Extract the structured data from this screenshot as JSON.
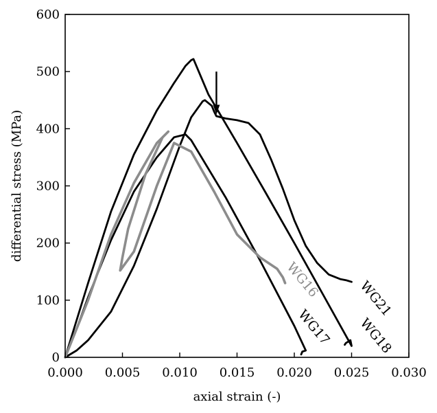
{
  "chart_data": {
    "type": "line",
    "xlabel": "axial strain (-)",
    "ylabel": "differential stress (MPa)",
    "xlim": [
      0.0,
      0.03
    ],
    "ylim": [
      0,
      600
    ],
    "xticks": [
      0.0,
      0.005,
      0.01,
      0.015,
      0.02,
      0.025,
      0.03
    ],
    "xtick_labels": [
      "0.000",
      "0.005",
      "0.010",
      "0.015",
      "0.020",
      "0.025",
      "0.030"
    ],
    "yticks": [
      0,
      100,
      200,
      300,
      400,
      500,
      600
    ],
    "ytick_labels": [
      "0",
      "100",
      "200",
      "300",
      "400",
      "500",
      "600"
    ],
    "grid": false,
    "series": [
      {
        "name": "WG21",
        "color": "#000000",
        "x": [
          0.0,
          0.002,
          0.004,
          0.006,
          0.008,
          0.0095,
          0.0105,
          0.011,
          0.0112,
          0.0125,
          0.015,
          0.0175,
          0.02,
          0.0225,
          0.025,
          0.0249,
          0.0245,
          0.0244
        ],
        "y": [
          0,
          130,
          255,
          355,
          432,
          480,
          510,
          520,
          522,
          460,
          375,
          288,
          200,
          110,
          20,
          30,
          25,
          22
        ]
      },
      {
        "name": "WG18",
        "color": "#000000",
        "x": [
          0.0,
          0.001,
          0.002,
          0.004,
          0.006,
          0.008,
          0.01,
          0.011,
          0.012,
          0.0122,
          0.0128,
          0.013,
          0.0132,
          0.014,
          0.015,
          0.016,
          0.017,
          0.018,
          0.019,
          0.02,
          0.021,
          0.022,
          0.023,
          0.024,
          0.0245,
          0.025
        ],
        "y": [
          0,
          12,
          30,
          80,
          160,
          260,
          370,
          420,
          448,
          450,
          440,
          430,
          422,
          418,
          415,
          410,
          390,
          345,
          295,
          240,
          195,
          165,
          145,
          137,
          135,
          132
        ]
      },
      {
        "name": "WG17",
        "color": "#000000",
        "x": [
          0.0,
          0.001,
          0.002,
          0.004,
          0.006,
          0.008,
          0.0095,
          0.0105,
          0.011,
          0.014,
          0.017,
          0.02,
          0.021,
          0.0207,
          0.0206
        ],
        "y": [
          0,
          50,
          105,
          205,
          290,
          350,
          385,
          390,
          380,
          280,
          170,
          55,
          12,
          10,
          5
        ]
      },
      {
        "name": "WG16",
        "color": "#8c8c8c",
        "x": [
          0.0,
          0.002,
          0.004,
          0.006,
          0.008,
          0.009,
          0.0085,
          0.007,
          0.0055,
          0.005,
          0.0048,
          0.006,
          0.008,
          0.0095,
          0.011,
          0.013,
          0.015,
          0.017,
          0.0185,
          0.019,
          0.0192
        ],
        "y": [
          0,
          100,
          215,
          305,
          375,
          395,
          385,
          320,
          225,
          175,
          152,
          185,
          300,
          375,
          360,
          290,
          215,
          175,
          155,
          140,
          130
        ]
      }
    ],
    "annotations": [
      {
        "type": "arrow",
        "x": 0.0132,
        "y_from": 500,
        "y_to": 425
      }
    ]
  }
}
